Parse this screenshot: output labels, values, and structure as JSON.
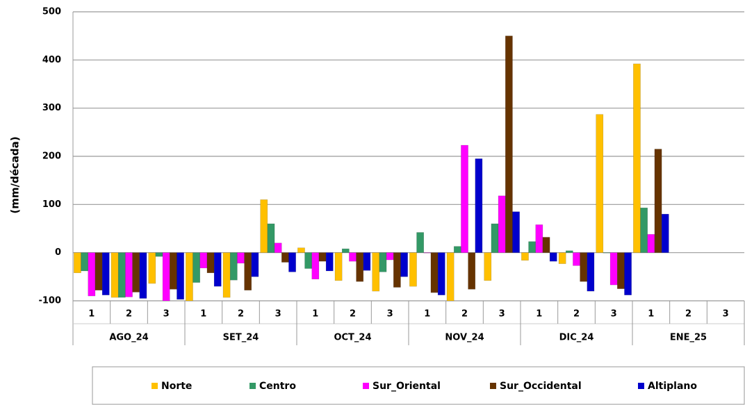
{
  "chart_data": {
    "type": "bar",
    "y_label": "(mm/década)",
    "categories": [
      "1",
      "2",
      "3",
      "1",
      "2",
      "3",
      "1",
      "2",
      "3",
      "1",
      "2",
      "3",
      "1",
      "2",
      "3",
      "1",
      "2",
      "3"
    ],
    "groups": [
      "AGO_24",
      "SET_24",
      "OCT_24",
      "NOV_24",
      "DIC_24",
      "ENE_25"
    ],
    "series": [
      {
        "name": "Norte",
        "color": "#FFC000",
        "values": [
          -42,
          -93,
          -64,
          -100,
          -93,
          110,
          10,
          -58,
          -80,
          -70,
          -100,
          -58,
          -16,
          -23,
          287,
          392,
          null,
          null
        ]
      },
      {
        "name": "Centro",
        "color": "#339966",
        "values": [
          -38,
          -93,
          -8,
          -62,
          -57,
          60,
          -33,
          8,
          -40,
          42,
          13,
          60,
          23,
          4,
          0,
          93,
          null,
          null
        ]
      },
      {
        "name": "Sur_Oriental",
        "color": "#FF00FF",
        "values": [
          -90,
          -92,
          -100,
          -32,
          -22,
          20,
          -55,
          -18,
          -15,
          0,
          223,
          118,
          58,
          -27,
          -67,
          38,
          null,
          null
        ]
      },
      {
        "name": "Sur_Occidental",
        "color": "#663300",
        "values": [
          -78,
          -82,
          -76,
          -42,
          -78,
          -20,
          -18,
          -60,
          -72,
          -83,
          -76,
          450,
          32,
          -60,
          -75,
          215,
          null,
          null
        ]
      },
      {
        "name": "Altiplano",
        "color": "#0000CC",
        "values": [
          -88,
          -95,
          -97,
          -70,
          -50,
          -40,
          -38,
          -37,
          -50,
          -88,
          195,
          85,
          -18,
          -80,
          -88,
          80,
          null,
          null
        ]
      }
    ],
    "ylim": [
      -100,
      500
    ],
    "yticks": [
      -100,
      0,
      100,
      200,
      300,
      400,
      500
    ],
    "grid": true,
    "legend": "bottom"
  }
}
